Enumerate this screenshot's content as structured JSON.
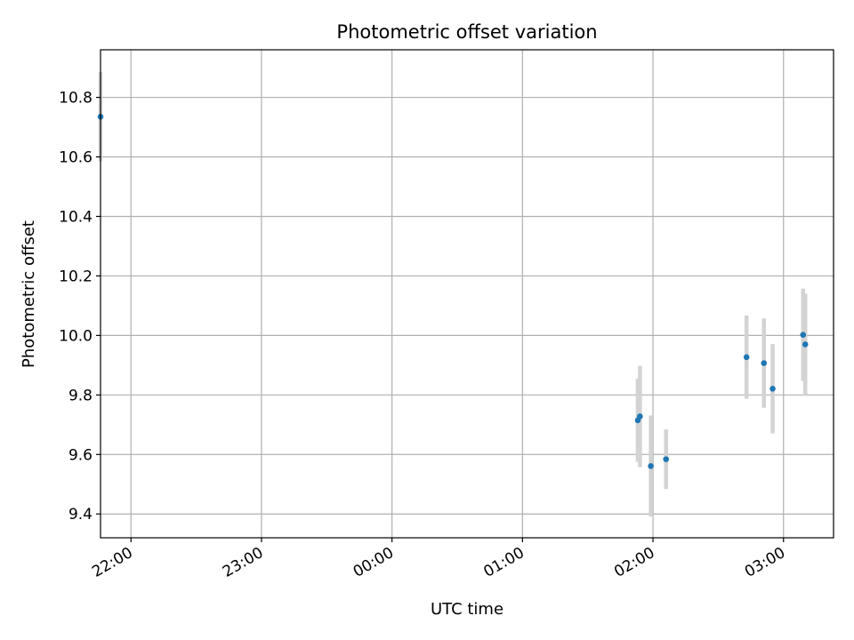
{
  "chart_data": {
    "type": "scatter",
    "title": "Photometric offset variation",
    "xlabel": "UTC time",
    "ylabel": "Photometric offset",
    "x_axis_kind": "time",
    "xlim": [
      "21:46",
      "03:23"
    ],
    "ylim": [
      9.32,
      10.96
    ],
    "xticks": [
      "22:00",
      "23:00",
      "00:00",
      "01:00",
      "02:00",
      "03:00"
    ],
    "yticks": [
      9.4,
      9.6,
      9.8,
      10.0,
      10.2,
      10.4,
      10.6,
      10.8
    ],
    "grid": true,
    "marker_color": "#1f77b4",
    "errorbar_color": "#d3d3d3",
    "points": [
      {
        "time": "21:46",
        "y": 10.735,
        "err": 0.15
      },
      {
        "time": "01:53",
        "y": 9.715,
        "err": 0.14
      },
      {
        "time": "01:54",
        "y": 9.728,
        "err": 0.17
      },
      {
        "time": "01:59",
        "y": 9.561,
        "err": 0.17
      },
      {
        "time": "02:06",
        "y": 9.584,
        "err": 0.1
      },
      {
        "time": "02:43",
        "y": 9.927,
        "err": 0.14
      },
      {
        "time": "02:51",
        "y": 9.907,
        "err": 0.15
      },
      {
        "time": "02:55",
        "y": 9.821,
        "err": 0.15
      },
      {
        "time": "03:09",
        "y": 10.002,
        "err": 0.155
      },
      {
        "time": "03:10",
        "y": 9.97,
        "err": 0.17
      }
    ]
  }
}
